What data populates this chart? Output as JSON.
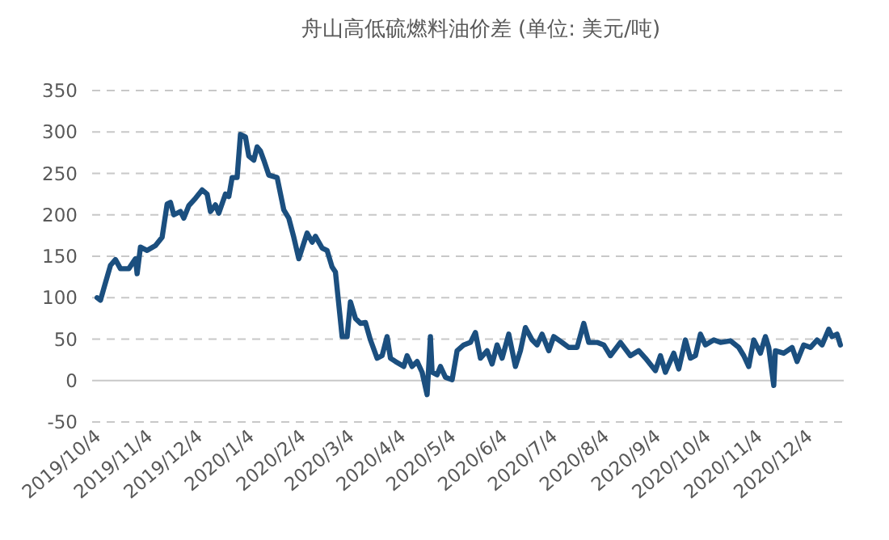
{
  "chart_data": {
    "type": "line",
    "title": "舟山高低硫燃料油价差 (单位: 美元/吨)",
    "x": [
      "2019-10-04",
      "2019-10-06",
      "2019-10-08",
      "2019-10-12",
      "2019-10-15",
      "2019-10-18",
      "2019-10-23",
      "2019-10-27",
      "2019-10-28",
      "2019-10-30",
      "2019-11-03",
      "2019-11-08",
      "2019-11-12",
      "2019-11-15",
      "2019-11-17",
      "2019-11-19",
      "2019-11-23",
      "2019-11-25",
      "2019-11-28",
      "2019-12-02",
      "2019-12-06",
      "2019-12-09",
      "2019-12-11",
      "2019-12-14",
      "2019-12-16",
      "2019-12-20",
      "2019-12-22",
      "2019-12-24",
      "2019-12-27",
      "2019-12-29",
      "2020-01-01",
      "2020-01-03",
      "2020-01-06",
      "2020-01-08",
      "2020-01-10",
      "2020-01-12",
      "2020-01-15",
      "2020-01-20",
      "2020-01-24",
      "2020-01-27",
      "2020-01-30",
      "2020-02-02",
      "2020-02-07",
      "2020-02-10",
      "2020-02-12",
      "2020-02-16",
      "2020-02-19",
      "2020-02-22",
      "2020-02-24",
      "2020-02-28",
      "2020-03-02",
      "2020-03-04",
      "2020-03-07",
      "2020-03-10",
      "2020-03-13",
      "2020-03-16",
      "2020-03-20",
      "2020-03-23",
      "2020-03-26",
      "2020-03-28",
      "2020-03-31",
      "2020-04-05",
      "2020-04-07",
      "2020-04-10",
      "2020-04-13",
      "2020-04-16",
      "2020-04-19",
      "2020-04-21",
      "2020-04-22",
      "2020-04-25",
      "2020-04-27",
      "2020-04-30",
      "2020-05-04",
      "2020-05-07",
      "2020-05-11",
      "2020-05-15",
      "2020-05-18",
      "2020-05-21",
      "2020-05-25",
      "2020-05-28",
      "2020-05-31",
      "2020-06-03",
      "2020-06-07",
      "2020-06-11",
      "2020-06-14",
      "2020-06-17",
      "2020-06-21",
      "2020-06-24",
      "2020-06-27",
      "2020-07-01",
      "2020-07-04",
      "2020-07-09",
      "2020-07-13",
      "2020-07-18",
      "2020-07-22",
      "2020-07-25",
      "2020-07-30",
      "2020-08-03",
      "2020-08-07",
      "2020-08-13",
      "2020-08-19",
      "2020-08-24",
      "2020-08-28",
      "2020-09-03",
      "2020-09-06",
      "2020-09-09",
      "2020-09-14",
      "2020-09-17",
      "2020-09-21",
      "2020-09-24",
      "2020-09-27",
      "2020-09-30",
      "2020-10-03",
      "2020-10-08",
      "2020-10-12",
      "2020-10-18",
      "2020-10-23",
      "2020-10-26",
      "2020-10-29",
      "2020-11-01",
      "2020-11-05",
      "2020-11-08",
      "2020-11-10",
      "2020-11-13",
      "2020-11-14",
      "2020-11-19",
      "2020-11-24",
      "2020-11-27",
      "2020-12-01",
      "2020-12-05",
      "2020-12-09",
      "2020-12-12",
      "2020-12-16",
      "2020-12-18",
      "2020-12-21",
      "2020-12-23"
    ],
    "series": [
      {
        "color": "#1b4f7f",
        "values": [
          100,
          97,
          111,
          139,
          146,
          135,
          135,
          147,
          129,
          161,
          157,
          163,
          173,
          213,
          215,
          200,
          204,
          196,
          211,
          220,
          230,
          225,
          204,
          212,
          202,
          225,
          222,
          245,
          245,
          297,
          294,
          271,
          266,
          282,
          277,
          266,
          248,
          245,
          206,
          196,
          173,
          147,
          178,
          167,
          174,
          160,
          157,
          137,
          131,
          53,
          53,
          95,
          75,
          69,
          70,
          49,
          27,
          30,
          53,
          27,
          23,
          17,
          30,
          17,
          23,
          10,
          -17,
          53,
          10,
          7,
          17,
          4,
          1,
          36,
          43,
          46,
          58,
          27,
          36,
          20,
          43,
          27,
          56,
          17,
          36,
          64,
          49,
          43,
          56,
          36,
          53,
          46,
          40,
          40,
          69,
          46,
          46,
          43,
          30,
          46,
          30,
          36,
          27,
          12,
          30,
          10,
          33,
          14,
          49,
          27,
          30,
          56,
          43,
          49,
          46,
          48,
          40,
          30,
          17,
          49,
          33,
          53,
          40,
          -6,
          36,
          33,
          40,
          23,
          43,
          40,
          49,
          43,
          62,
          53,
          56,
          43
        ]
      }
    ],
    "xlim": [
      "2019-10-01",
      "2020-12-25"
    ],
    "xticks": [
      {
        "value": "2019-10-04",
        "label": "2019/10/4"
      },
      {
        "value": "2019-11-04",
        "label": "2019/11/4"
      },
      {
        "value": "2019-12-04",
        "label": "2019/12/4"
      },
      {
        "value": "2020-01-04",
        "label": "2020/1/4"
      },
      {
        "value": "2020-02-04",
        "label": "2020/2/4"
      },
      {
        "value": "2020-03-04",
        "label": "2020/3/4"
      },
      {
        "value": "2020-04-04",
        "label": "2020/4/4"
      },
      {
        "value": "2020-05-04",
        "label": "2020/5/4"
      },
      {
        "value": "2020-06-04",
        "label": "2020/6/4"
      },
      {
        "value": "2020-07-04",
        "label": "2020/7/4"
      },
      {
        "value": "2020-08-04",
        "label": "2020/8/4"
      },
      {
        "value": "2020-09-04",
        "label": "2020/9/4"
      },
      {
        "value": "2020-10-04",
        "label": "2020/10/4"
      },
      {
        "value": "2020-11-04",
        "label": "2020/11/4"
      },
      {
        "value": "2020-12-04",
        "label": "2020/12/4"
      }
    ],
    "ylim": [
      -50,
      350
    ],
    "yticks": [
      -50,
      0,
      50,
      100,
      150,
      200,
      250,
      300,
      350
    ],
    "grid": "y",
    "line_style": "solid",
    "marker": "none"
  }
}
